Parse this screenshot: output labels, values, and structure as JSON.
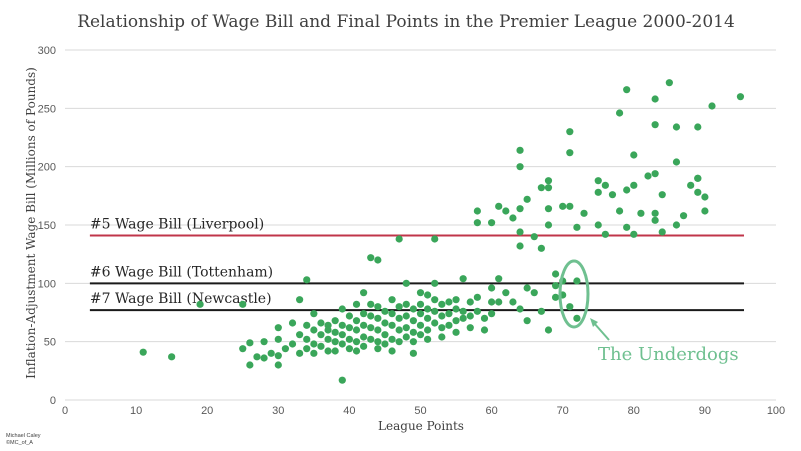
{
  "chart_data": {
    "type": "scatter",
    "title": "Relationship of Wage Bill and Final Points in the Premier League 2000-2014",
    "xlabel": "League Points",
    "ylabel": "Inflation-Adjustment Wage Bill (Millions of Pounds)",
    "xlim": [
      0,
      100
    ],
    "ylim": [
      0,
      300
    ],
    "xticks": [
      0,
      10,
      20,
      30,
      40,
      50,
      60,
      70,
      80,
      90,
      100
    ],
    "yticks": [
      0,
      50,
      100,
      150,
      200,
      250,
      300
    ],
    "grid": "horizontal",
    "point_color": "#3aa65a",
    "reference_lines": [
      {
        "label": "#5 Wage Bill (Liverpool)",
        "y": 141,
        "color": "#c0354a"
      },
      {
        "label": "#6 Wage Bill (Tottenham)",
        "y": 100,
        "color": "#1a1a1a"
      },
      {
        "label": "#7 Wage Bill (Newcastle)",
        "y": 77,
        "color": "#1a1a1a"
      }
    ],
    "annotation": {
      "label": "The Underdogs",
      "color": "#6fc090"
    },
    "points": [
      [
        11,
        41
      ],
      [
        15,
        37
      ],
      [
        19,
        82
      ],
      [
        25,
        82
      ],
      [
        25,
        44
      ],
      [
        26,
        49
      ],
      [
        26,
        30
      ],
      [
        27,
        37
      ],
      [
        28,
        50
      ],
      [
        28,
        36
      ],
      [
        29,
        40
      ],
      [
        30,
        62
      ],
      [
        30,
        52
      ],
      [
        30,
        38
      ],
      [
        30,
        30
      ],
      [
        31,
        44
      ],
      [
        32,
        66
      ],
      [
        32,
        48
      ],
      [
        33,
        86
      ],
      [
        33,
        56
      ],
      [
        33,
        40
      ],
      [
        34,
        103
      ],
      [
        34,
        64
      ],
      [
        34,
        52
      ],
      [
        34,
        44
      ],
      [
        35,
        74
      ],
      [
        35,
        60
      ],
      [
        35,
        48
      ],
      [
        35,
        40
      ],
      [
        36,
        66
      ],
      [
        36,
        56
      ],
      [
        36,
        46
      ],
      [
        37,
        64
      ],
      [
        37,
        60
      ],
      [
        37,
        52
      ],
      [
        37,
        42
      ],
      [
        38,
        68
      ],
      [
        38,
        58
      ],
      [
        38,
        50
      ],
      [
        38,
        42
      ],
      [
        39,
        78
      ],
      [
        39,
        64
      ],
      [
        39,
        56
      ],
      [
        39,
        48
      ],
      [
        39,
        17
      ],
      [
        40,
        72
      ],
      [
        40,
        62
      ],
      [
        40,
        52
      ],
      [
        40,
        44
      ],
      [
        41,
        82
      ],
      [
        41,
        68
      ],
      [
        41,
        60
      ],
      [
        41,
        50
      ],
      [
        41,
        42
      ],
      [
        42,
        92
      ],
      [
        42,
        74
      ],
      [
        42,
        64
      ],
      [
        42,
        54
      ],
      [
        42,
        46
      ],
      [
        43,
        122
      ],
      [
        43,
        82
      ],
      [
        43,
        72
      ],
      [
        43,
        62
      ],
      [
        43,
        52
      ],
      [
        44,
        120
      ],
      [
        44,
        80
      ],
      [
        44,
        70
      ],
      [
        44,
        60
      ],
      [
        44,
        50
      ],
      [
        44,
        44
      ],
      [
        45,
        76
      ],
      [
        45,
        66
      ],
      [
        45,
        56
      ],
      [
        45,
        48
      ],
      [
        46,
        86
      ],
      [
        46,
        74
      ],
      [
        46,
        64
      ],
      [
        46,
        52
      ],
      [
        46,
        42
      ],
      [
        47,
        138
      ],
      [
        47,
        80
      ],
      [
        47,
        70
      ],
      [
        47,
        60
      ],
      [
        47,
        50
      ],
      [
        48,
        100
      ],
      [
        48,
        82
      ],
      [
        48,
        72
      ],
      [
        48,
        62
      ],
      [
        48,
        54
      ],
      [
        49,
        78
      ],
      [
        49,
        68
      ],
      [
        49,
        58
      ],
      [
        49,
        50
      ],
      [
        49,
        40
      ],
      [
        50,
        92
      ],
      [
        50,
        82
      ],
      [
        50,
        74
      ],
      [
        50,
        64
      ],
      [
        50,
        56
      ],
      [
        51,
        90
      ],
      [
        51,
        78
      ],
      [
        51,
        70
      ],
      [
        51,
        60
      ],
      [
        51,
        52
      ],
      [
        52,
        138
      ],
      [
        52,
        100
      ],
      [
        52,
        86
      ],
      [
        52,
        76
      ],
      [
        52,
        66
      ],
      [
        53,
        82
      ],
      [
        53,
        72
      ],
      [
        53,
        62
      ],
      [
        53,
        54
      ],
      [
        54,
        84
      ],
      [
        54,
        74
      ],
      [
        54,
        64
      ],
      [
        55,
        86
      ],
      [
        55,
        78
      ],
      [
        55,
        68
      ],
      [
        55,
        58
      ],
      [
        56,
        104
      ],
      [
        56,
        76
      ],
      [
        56,
        70
      ],
      [
        57,
        84
      ],
      [
        57,
        72
      ],
      [
        57,
        62
      ],
      [
        58,
        162
      ],
      [
        58,
        152
      ],
      [
        58,
        88
      ],
      [
        58,
        76
      ],
      [
        59,
        70
      ],
      [
        59,
        60
      ],
      [
        60,
        152
      ],
      [
        60,
        96
      ],
      [
        60,
        84
      ],
      [
        60,
        74
      ],
      [
        61,
        166
      ],
      [
        61,
        104
      ],
      [
        61,
        84
      ],
      [
        62,
        162
      ],
      [
        62,
        92
      ],
      [
        63,
        156
      ],
      [
        63,
        84
      ],
      [
        64,
        214
      ],
      [
        64,
        200
      ],
      [
        64,
        164
      ],
      [
        64,
        144
      ],
      [
        64,
        132
      ],
      [
        64,
        78
      ],
      [
        65,
        172
      ],
      [
        65,
        96
      ],
      [
        65,
        68
      ],
      [
        66,
        140
      ],
      [
        66,
        92
      ],
      [
        67,
        182
      ],
      [
        67,
        130
      ],
      [
        67,
        76
      ],
      [
        68,
        182
      ],
      [
        68,
        164
      ],
      [
        68,
        150
      ],
      [
        68,
        188
      ],
      [
        68,
        60
      ],
      [
        69,
        108
      ],
      [
        69,
        98
      ],
      [
        69,
        88
      ],
      [
        70,
        166
      ],
      [
        70,
        102
      ],
      [
        70,
        90
      ],
      [
        71,
        230
      ],
      [
        71,
        212
      ],
      [
        71,
        80
      ],
      [
        71,
        166
      ],
      [
        72,
        148
      ],
      [
        72,
        102
      ],
      [
        72,
        70
      ],
      [
        73,
        160
      ],
      [
        75,
        150
      ],
      [
        75,
        178
      ],
      [
        75,
        188
      ],
      [
        76,
        142
      ],
      [
        76,
        184
      ],
      [
        77,
        176
      ],
      [
        78,
        246
      ],
      [
        78,
        162
      ],
      [
        79,
        266
      ],
      [
        79,
        148
      ],
      [
        79,
        180
      ],
      [
        80,
        210
      ],
      [
        80,
        184
      ],
      [
        80,
        142
      ],
      [
        81,
        160
      ],
      [
        82,
        192
      ],
      [
        83,
        258
      ],
      [
        83,
        236
      ],
      [
        83,
        194
      ],
      [
        83,
        160
      ],
      [
        83,
        154
      ],
      [
        84,
        144
      ],
      [
        84,
        176
      ],
      [
        85,
        272
      ],
      [
        86,
        234
      ],
      [
        86,
        204
      ],
      [
        86,
        150
      ],
      [
        87,
        158
      ],
      [
        88,
        184
      ],
      [
        89,
        234
      ],
      [
        89,
        190
      ],
      [
        89,
        178
      ],
      [
        89,
        190
      ],
      [
        90,
        174
      ],
      [
        90,
        162
      ],
      [
        91,
        252
      ],
      [
        95,
        260
      ]
    ]
  },
  "credit": {
    "line1": "Michael Caley",
    "line2": "©MC_of_A"
  }
}
